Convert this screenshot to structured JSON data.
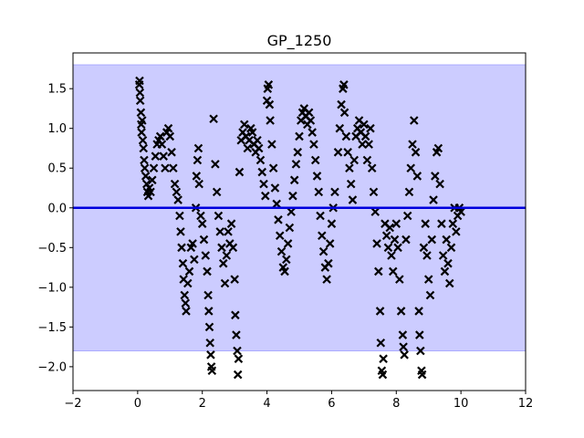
{
  "chart_data": {
    "type": "scatter",
    "title": "GP_1250",
    "xlabel": "",
    "ylabel": "",
    "xlim": [
      -2,
      12
    ],
    "ylim": [
      -2.3,
      1.95
    ],
    "xticks": [
      -2,
      0,
      2,
      4,
      6,
      8,
      10,
      12
    ],
    "yticks": [
      -2.0,
      -1.5,
      -1.0,
      -0.5,
      0.0,
      0.5,
      1.0,
      1.5
    ],
    "xtick_labels": [
      "−2",
      "0",
      "2",
      "4",
      "6",
      "8",
      "10",
      "12"
    ],
    "ytick_labels": [
      "−2.0",
      "−1.5",
      "−1.0",
      "−0.5",
      "0.0",
      "0.5",
      "1.0",
      "1.5"
    ],
    "grid": false,
    "mean_line": {
      "y": 0.0,
      "color": "#0000dd"
    },
    "band": {
      "lower": -1.8,
      "upper": 1.8,
      "color": "#ccccff"
    },
    "marker": {
      "shape": "x",
      "color": "#000000"
    },
    "series": [
      {
        "values": [
          [
            0.05,
            1.55
          ],
          [
            0.06,
            1.6
          ],
          [
            0.07,
            1.45
          ],
          [
            0.08,
            1.35
          ],
          [
            0.1,
            1.2
          ],
          [
            0.11,
            1.05
          ],
          [
            0.12,
            0.95
          ],
          [
            0.14,
            1.1
          ],
          [
            0.16,
            0.85
          ],
          [
            0.18,
            0.75
          ],
          [
            0.2,
            0.6
          ],
          [
            0.22,
            0.5
          ],
          [
            0.25,
            0.4
          ],
          [
            0.28,
            0.3
          ],
          [
            0.3,
            0.2
          ],
          [
            0.33,
            0.15
          ],
          [
            0.36,
            0.25
          ],
          [
            0.4,
            0.2
          ],
          [
            0.45,
            0.35
          ],
          [
            0.5,
            0.5
          ],
          [
            0.55,
            0.65
          ],
          [
            0.6,
            0.8
          ],
          [
            0.65,
            0.85
          ],
          [
            0.7,
            0.9
          ],
          [
            0.75,
            0.8
          ],
          [
            0.8,
            0.65
          ],
          [
            0.85,
            0.5
          ],
          [
            0.9,
            0.95
          ],
          [
            0.95,
            1.0
          ],
          [
            1.0,
            0.9
          ],
          [
            1.05,
            0.7
          ],
          [
            1.1,
            0.5
          ],
          [
            1.15,
            0.3
          ],
          [
            1.2,
            0.2
          ],
          [
            1.25,
            0.1
          ],
          [
            1.3,
            -0.1
          ],
          [
            1.33,
            -0.3
          ],
          [
            1.36,
            -0.5
          ],
          [
            1.4,
            -0.7
          ],
          [
            1.42,
            -0.9
          ],
          [
            1.45,
            -1.1
          ],
          [
            1.48,
            -1.2
          ],
          [
            1.5,
            -1.3
          ],
          [
            1.55,
            -0.95
          ],
          [
            1.6,
            -0.8
          ],
          [
            1.65,
            -0.5
          ],
          [
            1.7,
            -0.45
          ],
          [
            1.75,
            -0.65
          ],
          [
            1.8,
            0.0
          ],
          [
            1.82,
            0.4
          ],
          [
            1.85,
            0.6
          ],
          [
            1.88,
            0.75
          ],
          [
            1.9,
            0.3
          ],
          [
            1.95,
            -0.1
          ],
          [
            2.0,
            -0.2
          ],
          [
            2.05,
            -0.4
          ],
          [
            2.1,
            -0.6
          ],
          [
            2.15,
            -0.8
          ],
          [
            2.18,
            -1.1
          ],
          [
            2.2,
            -1.3
          ],
          [
            2.22,
            -1.5
          ],
          [
            2.24,
            -1.7
          ],
          [
            2.26,
            -1.85
          ],
          [
            2.28,
            -2.0
          ],
          [
            2.3,
            -2.05
          ],
          [
            2.35,
            1.12
          ],
          [
            2.4,
            0.55
          ],
          [
            2.45,
            0.2
          ],
          [
            2.5,
            -0.1
          ],
          [
            2.55,
            -0.3
          ],
          [
            2.6,
            -0.5
          ],
          [
            2.65,
            -0.7
          ],
          [
            2.7,
            -0.95
          ],
          [
            2.75,
            -0.6
          ],
          [
            2.8,
            -0.3
          ],
          [
            2.85,
            -0.45
          ],
          [
            2.9,
            -0.2
          ],
          [
            2.95,
            -0.5
          ],
          [
            3.0,
            -0.9
          ],
          [
            3.02,
            -1.35
          ],
          [
            3.05,
            -1.6
          ],
          [
            3.08,
            -1.8
          ],
          [
            3.1,
            -2.1
          ],
          [
            3.12,
            -1.9
          ],
          [
            3.15,
            0.45
          ],
          [
            3.2,
            0.85
          ],
          [
            3.25,
            0.95
          ],
          [
            3.3,
            1.05
          ],
          [
            3.35,
            0.9
          ],
          [
            3.4,
            0.75
          ],
          [
            3.45,
            0.85
          ],
          [
            3.5,
            1.0
          ],
          [
            3.55,
            0.95
          ],
          [
            3.6,
            0.8
          ],
          [
            3.65,
            0.7
          ],
          [
            3.7,
            0.85
          ],
          [
            3.75,
            0.75
          ],
          [
            3.8,
            0.6
          ],
          [
            3.85,
            0.45
          ],
          [
            3.9,
            0.3
          ],
          [
            3.95,
            0.15
          ],
          [
            4.0,
            1.35
          ],
          [
            4.02,
            1.5
          ],
          [
            4.05,
            1.55
          ],
          [
            4.08,
            1.3
          ],
          [
            4.1,
            1.1
          ],
          [
            4.15,
            0.8
          ],
          [
            4.2,
            0.5
          ],
          [
            4.25,
            0.25
          ],
          [
            4.3,
            0.05
          ],
          [
            4.35,
            -0.15
          ],
          [
            4.4,
            -0.35
          ],
          [
            4.45,
            -0.55
          ],
          [
            4.5,
            -0.75
          ],
          [
            4.55,
            -0.8
          ],
          [
            4.6,
            -0.65
          ],
          [
            4.65,
            -0.45
          ],
          [
            4.7,
            -0.25
          ],
          [
            4.75,
            -0.05
          ],
          [
            4.8,
            0.15
          ],
          [
            4.85,
            0.35
          ],
          [
            4.9,
            0.55
          ],
          [
            4.95,
            0.7
          ],
          [
            5.0,
            0.9
          ],
          [
            5.05,
            1.1
          ],
          [
            5.1,
            1.2
          ],
          [
            5.15,
            1.25
          ],
          [
            5.2,
            1.15
          ],
          [
            5.25,
            1.05
          ],
          [
            5.3,
            1.2
          ],
          [
            5.35,
            1.1
          ],
          [
            5.4,
            0.95
          ],
          [
            5.45,
            0.8
          ],
          [
            5.5,
            0.6
          ],
          [
            5.55,
            0.4
          ],
          [
            5.6,
            0.2
          ],
          [
            5.65,
            -0.1
          ],
          [
            5.7,
            -0.35
          ],
          [
            5.75,
            -0.55
          ],
          [
            5.8,
            -0.75
          ],
          [
            5.85,
            -0.9
          ],
          [
            5.9,
            -0.7
          ],
          [
            5.95,
            -0.45
          ],
          [
            6.0,
            -0.2
          ],
          [
            6.05,
            0.0
          ],
          [
            6.1,
            0.2
          ],
          [
            6.2,
            0.7
          ],
          [
            6.25,
            1.0
          ],
          [
            6.3,
            1.3
          ],
          [
            6.35,
            1.5
          ],
          [
            6.38,
            1.55
          ],
          [
            6.4,
            1.2
          ],
          [
            6.45,
            0.9
          ],
          [
            6.5,
            0.7
          ],
          [
            6.55,
            0.5
          ],
          [
            6.6,
            0.3
          ],
          [
            6.65,
            0.1
          ],
          [
            6.7,
            0.6
          ],
          [
            6.75,
            0.9
          ],
          [
            6.8,
            1.0
          ],
          [
            6.85,
            1.1
          ],
          [
            6.9,
            0.95
          ],
          [
            6.95,
            0.8
          ],
          [
            7.0,
            1.05
          ],
          [
            7.05,
            0.9
          ],
          [
            7.1,
            0.6
          ],
          [
            7.15,
            0.8
          ],
          [
            7.2,
            1.0
          ],
          [
            7.25,
            0.5
          ],
          [
            7.3,
            0.2
          ],
          [
            7.35,
            -0.05
          ],
          [
            7.4,
            -0.45
          ],
          [
            7.45,
            -0.8
          ],
          [
            7.5,
            -1.3
          ],
          [
            7.52,
            -1.7
          ],
          [
            7.55,
            -2.05
          ],
          [
            7.58,
            -2.1
          ],
          [
            7.6,
            -1.9
          ],
          [
            7.65,
            -0.2
          ],
          [
            7.7,
            -0.35
          ],
          [
            7.75,
            -0.5
          ],
          [
            7.8,
            -0.25
          ],
          [
            7.85,
            -0.6
          ],
          [
            7.9,
            -0.8
          ],
          [
            7.95,
            -0.4
          ],
          [
            8.0,
            -0.2
          ],
          [
            8.05,
            -0.5
          ],
          [
            8.1,
            -0.9
          ],
          [
            8.15,
            -1.3
          ],
          [
            8.2,
            -1.6
          ],
          [
            8.22,
            -1.75
          ],
          [
            8.25,
            -1.85
          ],
          [
            8.3,
            -0.4
          ],
          [
            8.35,
            -0.1
          ],
          [
            8.4,
            0.2
          ],
          [
            8.45,
            0.5
          ],
          [
            8.5,
            0.8
          ],
          [
            8.55,
            1.1
          ],
          [
            8.6,
            0.7
          ],
          [
            8.65,
            0.4
          ],
          [
            8.7,
            -1.3
          ],
          [
            8.72,
            -1.6
          ],
          [
            8.75,
            -1.8
          ],
          [
            8.78,
            -2.05
          ],
          [
            8.8,
            -2.1
          ],
          [
            8.85,
            -0.5
          ],
          [
            8.9,
            -0.2
          ],
          [
            8.95,
            -0.6
          ],
          [
            9.0,
            -0.9
          ],
          [
            9.05,
            -1.1
          ],
          [
            9.1,
            -0.4
          ],
          [
            9.15,
            0.1
          ],
          [
            9.2,
            0.4
          ],
          [
            9.25,
            0.7
          ],
          [
            9.3,
            0.75
          ],
          [
            9.35,
            0.3
          ],
          [
            9.4,
            -0.2
          ],
          [
            9.45,
            -0.6
          ],
          [
            9.5,
            -0.8
          ],
          [
            9.55,
            -0.4
          ],
          [
            9.6,
            -0.7
          ],
          [
            9.65,
            -0.95
          ],
          [
            9.7,
            -0.5
          ],
          [
            9.75,
            -0.2
          ],
          [
            9.8,
            0.0
          ],
          [
            9.85,
            -0.3
          ],
          [
            9.9,
            -0.1
          ],
          [
            9.95,
            0.0
          ],
          [
            10.0,
            -0.05
          ]
        ]
      }
    ]
  }
}
